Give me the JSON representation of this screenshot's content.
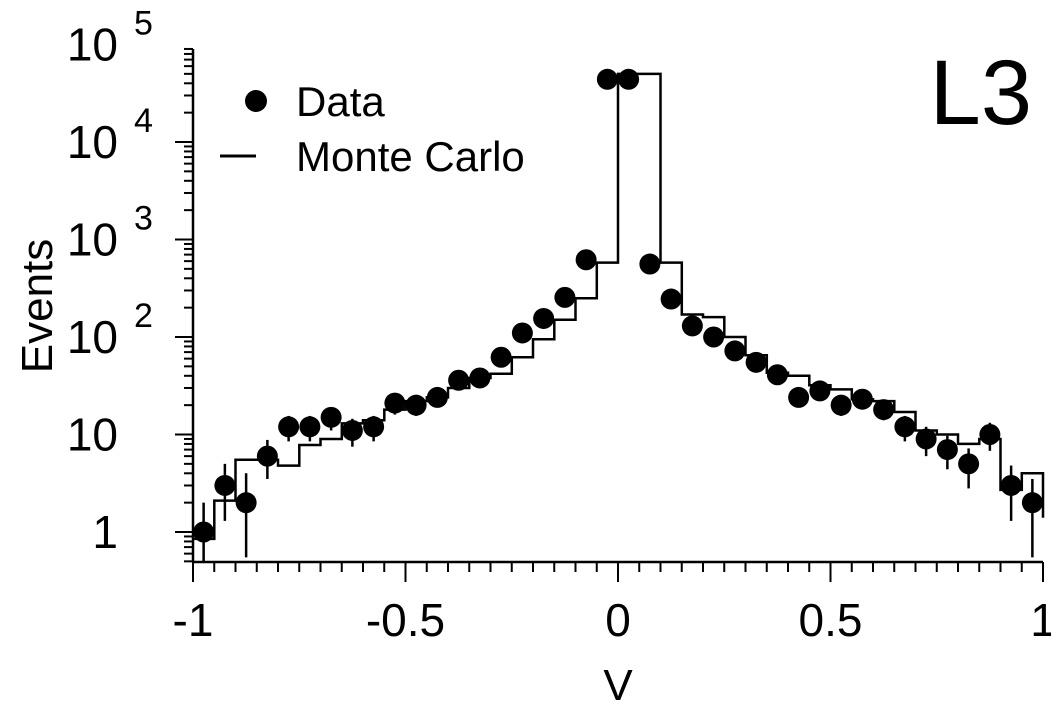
{
  "chart_data": {
    "type": "scatter",
    "experiment_label": "L3",
    "xlabel": "V",
    "ylabel": "Events",
    "xlim": [
      -1,
      1
    ],
    "ylim": [
      0.5,
      100000
    ],
    "yscale": "log",
    "x_ticks": [
      {
        "value": -1,
        "label": "-1"
      },
      {
        "value": -0.5,
        "label": "-0.5"
      },
      {
        "value": 0,
        "label": "0"
      },
      {
        "value": 0.5,
        "label": "0.5"
      },
      {
        "value": 1,
        "label": "1"
      }
    ],
    "y_ticks": [
      {
        "value": 1,
        "base": "1",
        "exp": ""
      },
      {
        "value": 10,
        "base": "10",
        "exp": ""
      },
      {
        "value": 100,
        "base": "10",
        "exp": "2"
      },
      {
        "value": 1000,
        "base": "10",
        "exp": "3"
      },
      {
        "value": 10000,
        "base": "10",
        "exp": "4"
      },
      {
        "value": 100000,
        "base": "10",
        "exp": "5"
      }
    ],
    "legend": {
      "position": "top-left",
      "entries": [
        {
          "label": "Data",
          "marker": "filled-circle"
        },
        {
          "label": "Monte Carlo",
          "marker": "line"
        }
      ]
    },
    "series": [
      {
        "name": "Data",
        "kind": "points",
        "x": [
          -0.975,
          -0.925,
          -0.875,
          -0.825,
          -0.775,
          -0.725,
          -0.675,
          -0.625,
          -0.575,
          -0.525,
          -0.475,
          -0.425,
          -0.375,
          -0.325,
          -0.275,
          -0.225,
          -0.175,
          -0.125,
          -0.075,
          -0.025,
          0.025,
          0.075,
          0.125,
          0.175,
          0.225,
          0.275,
          0.325,
          0.375,
          0.425,
          0.475,
          0.525,
          0.575,
          0.625,
          0.675,
          0.725,
          0.775,
          0.825,
          0.875,
          0.925,
          0.975
        ],
        "y": [
          1,
          3,
          2,
          6,
          12,
          12,
          15,
          11,
          12,
          21,
          20,
          24,
          36,
          38,
          62,
          110,
          155,
          255,
          620,
          44000,
          44000,
          560,
          245,
          130,
          100,
          72,
          55,
          41,
          24,
          28,
          20,
          23,
          18,
          12,
          9,
          7,
          5,
          10,
          3,
          2
        ],
        "y_low": [
          0.5,
          1.3,
          0.55,
          3.5,
          8.5,
          8.5,
          11,
          7.5,
          8.5,
          16,
          15.5,
          19.5,
          30,
          32,
          54,
          100,
          140,
          230,
          580,
          43000,
          43000,
          520,
          225,
          118,
          90,
          64,
          48,
          35,
          19.5,
          23,
          15.5,
          18.5,
          14,
          8.5,
          6,
          4.4,
          2.8,
          6.8,
          1.3,
          0.55
        ],
        "y_high": [
          2,
          5,
          4,
          8.8,
          15.5,
          15.5,
          19,
          14.5,
          15.5,
          26,
          25,
          29,
          42,
          44,
          70,
          121,
          170,
          280,
          660,
          45000,
          45000,
          600,
          265,
          142,
          110,
          80,
          62,
          47,
          29,
          33,
          25,
          28,
          22,
          15.5,
          12,
          9.7,
          7.2,
          13.2,
          4.8,
          3.5
        ]
      },
      {
        "name": "Monte Carlo",
        "kind": "step",
        "bin_edges": [
          -1,
          -0.95,
          -0.9,
          -0.85,
          -0.8,
          -0.75,
          -0.7,
          -0.65,
          -0.6,
          -0.55,
          -0.5,
          -0.45,
          -0.4,
          -0.35,
          -0.3,
          -0.25,
          -0.2,
          -0.15,
          -0.1,
          -0.05,
          0,
          0.05,
          0.1,
          0.15,
          0.2,
          0.25,
          0.3,
          0.35,
          0.4,
          0.45,
          0.5,
          0.55,
          0.6,
          0.65,
          0.7,
          0.75,
          0.8,
          0.85,
          0.9,
          0.95,
          1
        ],
        "values": [
          0.85,
          2.1,
          5.5,
          5.5,
          4.8,
          7.8,
          9.0,
          13,
          14,
          18,
          22,
          24,
          30,
          38,
          42,
          62,
          95,
          150,
          250,
          580,
          50000,
          50000,
          580,
          170,
          160,
          100,
          65,
          43,
          40,
          32,
          29,
          23,
          22,
          17,
          11,
          10,
          8,
          9,
          2.7,
          4,
          1.4
        ]
      }
    ]
  }
}
